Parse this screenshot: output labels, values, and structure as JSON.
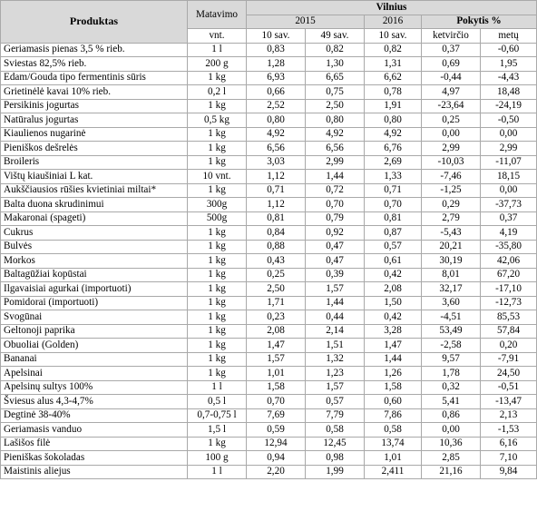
{
  "header": {
    "product": "Produktas",
    "unit": "Matavimo",
    "unit_sub": "vnt.",
    "city": "Vilnius",
    "year_2015": "2015",
    "year_2016": "2016",
    "change": "Pokytis %",
    "col_w10_2015": "10 sav.",
    "col_w49_2015": "49 sav.",
    "col_w10_2016": "10 sav.",
    "col_quarter": "ketvirčio",
    "col_year": "metų"
  },
  "rows": [
    {
      "name": "Geriamasis pienas 3,5 % rieb.",
      "unit": "1 l",
      "v1": "0,83",
      "v2": "0,82",
      "v3": "0,82",
      "q": "0,37",
      "y": "-0,60"
    },
    {
      "name": "Sviestas 82,5% rieb.",
      "unit": "200 g",
      "v1": "1,28",
      "v2": "1,30",
      "v3": "1,31",
      "q": "0,69",
      "y": "1,95"
    },
    {
      "name": "Edam/Gouda tipo fermentinis sūris",
      "unit": "1 kg",
      "v1": "6,93",
      "v2": "6,65",
      "v3": "6,62",
      "q": "-0,44",
      "y": "-4,43"
    },
    {
      "name": "Grietinėlė kavai 10% rieb.",
      "unit": "0,2 l",
      "v1": "0,66",
      "v2": "0,75",
      "v3": "0,78",
      "q": "4,97",
      "y": "18,48"
    },
    {
      "name": "Persikinis jogurtas",
      "unit": "1 kg",
      "v1": "2,52",
      "v2": "2,50",
      "v3": "1,91",
      "q": "-23,64",
      "y": "-24,19"
    },
    {
      "name": "Natūralus jogurtas",
      "unit": "0,5 kg",
      "v1": "0,80",
      "v2": "0,80",
      "v3": "0,80",
      "q": "0,25",
      "y": "-0,50"
    },
    {
      "name": "Kiaulienos nugarinė",
      "unit": "1 kg",
      "v1": "4,92",
      "v2": "4,92",
      "v3": "4,92",
      "q": "0,00",
      "y": "0,00"
    },
    {
      "name": "Pieniškos dešrelės",
      "unit": "1 kg",
      "v1": "6,56",
      "v2": "6,56",
      "v3": "6,76",
      "q": "2,99",
      "y": "2,99"
    },
    {
      "name": "Broileris",
      "unit": "1 kg",
      "v1": "3,03",
      "v2": "2,99",
      "v3": "2,69",
      "q": "-10,03",
      "y": "-11,07"
    },
    {
      "name": "Vištų kiaušiniai L kat.",
      "unit": "10 vnt.",
      "v1": "1,12",
      "v2": "1,44",
      "v3": "1,33",
      "q": "-7,46",
      "y": "18,15"
    },
    {
      "name": "Aukščiausios rūšies kvietiniai miltai*",
      "unit": "1 kg",
      "v1": "0,71",
      "v2": "0,72",
      "v3": "0,71",
      "q": "-1,25",
      "y": "0,00"
    },
    {
      "name": "Balta duona skrudinimui",
      "unit": "300g",
      "v1": "1,12",
      "v2": "0,70",
      "v3": "0,70",
      "q": "0,29",
      "y": "-37,73"
    },
    {
      "name": "Makaronai (spageti)",
      "unit": "500g",
      "v1": "0,81",
      "v2": "0,79",
      "v3": "0,81",
      "q": "2,79",
      "y": "0,37"
    },
    {
      "name": "Cukrus",
      "unit": "1 kg",
      "v1": "0,84",
      "v2": "0,92",
      "v3": "0,87",
      "q": "-5,43",
      "y": "4,19"
    },
    {
      "name": "Bulvės",
      "unit": "1 kg",
      "v1": "0,88",
      "v2": "0,47",
      "v3": "0,57",
      "q": "20,21",
      "y": "-35,80"
    },
    {
      "name": "Morkos",
      "unit": "1 kg",
      "v1": "0,43",
      "v2": "0,47",
      "v3": "0,61",
      "q": "30,19",
      "y": "42,06"
    },
    {
      "name": "Baltagūžiai kopūstai",
      "unit": "1 kg",
      "v1": "0,25",
      "v2": "0,39",
      "v3": "0,42",
      "q": "8,01",
      "y": "67,20"
    },
    {
      "name": "Ilgavaisiai agurkai (importuoti)",
      "unit": "1 kg",
      "v1": "2,50",
      "v2": "1,57",
      "v3": "2,08",
      "q": "32,17",
      "y": "-17,10"
    },
    {
      "name": "Pomidorai (importuoti)",
      "unit": "1 kg",
      "v1": "1,71",
      "v2": "1,44",
      "v3": "1,50",
      "q": "3,60",
      "y": "-12,73"
    },
    {
      "name": "Svogūnai",
      "unit": "1 kg",
      "v1": "0,23",
      "v2": "0,44",
      "v3": "0,42",
      "q": "-4,51",
      "y": "85,53"
    },
    {
      "name": "Geltonoji paprika",
      "unit": "1 kg",
      "v1": "2,08",
      "v2": "2,14",
      "v3": "3,28",
      "q": "53,49",
      "y": "57,84"
    },
    {
      "name": "Obuoliai (Golden)",
      "unit": "1 kg",
      "v1": "1,47",
      "v2": "1,51",
      "v3": "1,47",
      "q": "-2,58",
      "y": "0,20"
    },
    {
      "name": "Bananai",
      "unit": "1 kg",
      "v1": "1,57",
      "v2": "1,32",
      "v3": "1,44",
      "q": "9,57",
      "y": "-7,91"
    },
    {
      "name": "Apelsinai",
      "unit": "1 kg",
      "v1": "1,01",
      "v2": "1,23",
      "v3": "1,26",
      "q": "1,78",
      "y": "24,50"
    },
    {
      "name": "Apelsinų sultys 100%",
      "unit": "1 l",
      "v1": "1,58",
      "v2": "1,57",
      "v3": "1,58",
      "q": "0,32",
      "y": "-0,51"
    },
    {
      "name": "Šviesus alus 4,3-4,7%",
      "unit": "0,5 l",
      "v1": "0,70",
      "v2": "0,57",
      "v3": "0,60",
      "q": "5,41",
      "y": "-13,47"
    },
    {
      "name": "Degtinė 38-40%",
      "unit": "0,7-0,75 l",
      "v1": "7,69",
      "v2": "7,79",
      "v3": "7,86",
      "q": "0,86",
      "y": "2,13"
    },
    {
      "name": "Geriamasis vanduo",
      "unit": "1,5 l",
      "v1": "0,59",
      "v2": "0,58",
      "v3": "0,58",
      "q": "0,00",
      "y": "-1,53"
    },
    {
      "name": "Lašišos filė",
      "unit": "1 kg",
      "v1": "12,94",
      "v2": "12,45",
      "v3": "13,74",
      "q": "10,36",
      "y": "6,16"
    },
    {
      "name": "Pieniškas šokoladas",
      "unit": "100 g",
      "v1": "0,94",
      "v2": "0,98",
      "v3": "1,01",
      "q": "2,85",
      "y": "7,10"
    },
    {
      "name": "Maistinis aliejus",
      "unit": "1 l",
      "v1": "2,20",
      "v2": "1,99",
      "v3": "2,411",
      "q": "21,16",
      "y": "9,84"
    }
  ]
}
